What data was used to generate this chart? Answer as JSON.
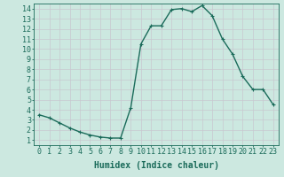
{
  "x": [
    0,
    1,
    2,
    3,
    4,
    5,
    6,
    7,
    8,
    9,
    10,
    11,
    12,
    13,
    14,
    15,
    16,
    17,
    18,
    19,
    20,
    21,
    22,
    23
  ],
  "y": [
    3.5,
    3.2,
    2.7,
    2.2,
    1.8,
    1.5,
    1.3,
    1.2,
    1.2,
    4.2,
    10.5,
    12.3,
    12.3,
    13.9,
    14.0,
    13.7,
    14.3,
    13.3,
    11.0,
    9.5,
    7.3,
    6.0,
    6.0,
    4.5
  ],
  "xlabel": "Humidex (Indice chaleur)",
  "line_color": "#1a6b5a",
  "bg_color": "#cce8e0",
  "grid_color": "#c8c8d0",
  "tick_label_color": "#1a6b5a",
  "xlim": [
    -0.5,
    23.5
  ],
  "ylim": [
    0.5,
    14.5
  ],
  "yticks": [
    1,
    2,
    3,
    4,
    5,
    6,
    7,
    8,
    9,
    10,
    11,
    12,
    13,
    14
  ],
  "xticks": [
    0,
    1,
    2,
    3,
    4,
    5,
    6,
    7,
    8,
    9,
    10,
    11,
    12,
    13,
    14,
    15,
    16,
    17,
    18,
    19,
    20,
    21,
    22,
    23
  ],
  "xlabel_fontsize": 7,
  "tick_fontsize": 6,
  "markersize": 2.5,
  "linewidth": 1.0
}
